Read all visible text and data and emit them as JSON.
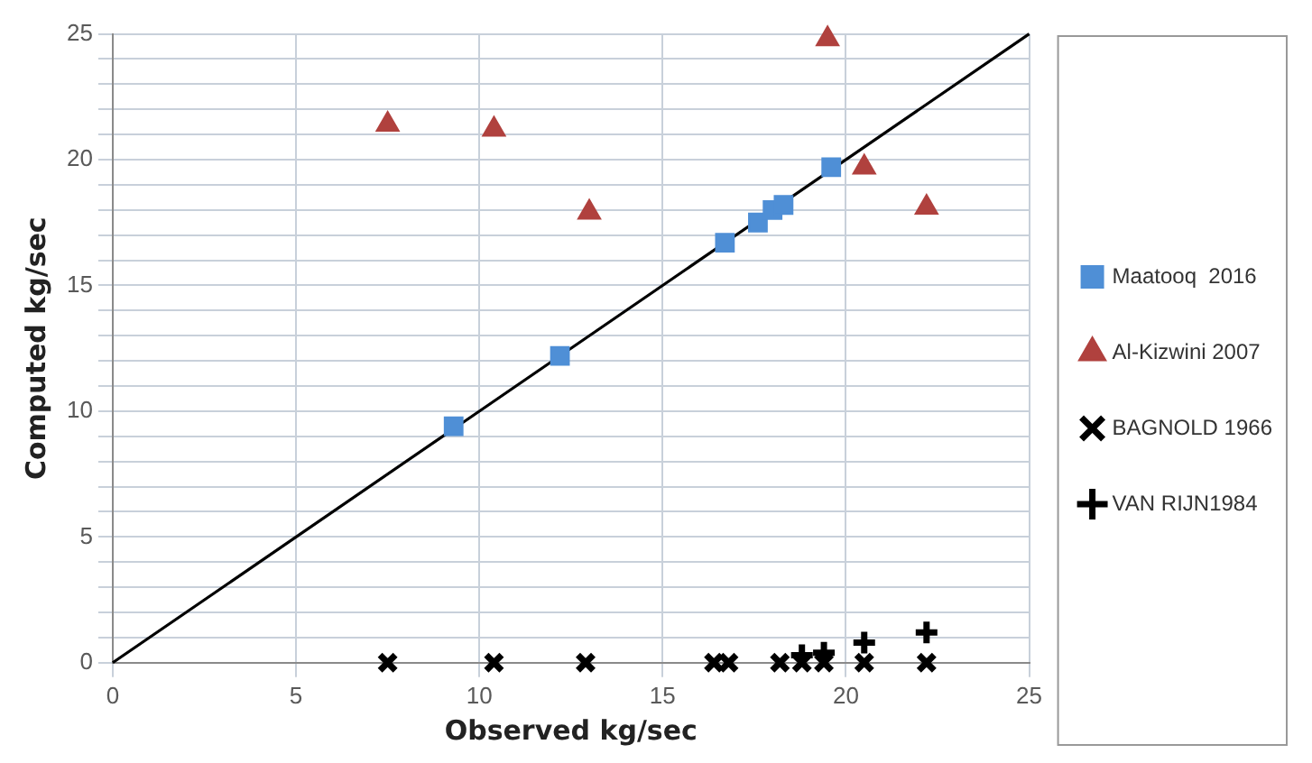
{
  "chart_data": {
    "type": "scatter",
    "xlabel": "Observed kg/sec",
    "ylabel": "Computed kg/sec",
    "xlim": [
      0,
      25
    ],
    "ylim": [
      0,
      25
    ],
    "xticks": [
      0,
      5,
      10,
      15,
      20,
      25
    ],
    "yticks": [
      0,
      {
        "value": 1,
        "label": null
      },
      {
        "value": 2,
        "label": null
      },
      {
        "value": 3,
        "label": null
      },
      {
        "value": 4,
        "label": null
      },
      5,
      {
        "value": 6,
        "label": null
      },
      {
        "value": 7,
        "label": null
      },
      {
        "value": 8,
        "label": null
      },
      {
        "value": 9,
        "label": null
      },
      10,
      {
        "value": 11,
        "label": null
      },
      {
        "value": 12,
        "label": null
      },
      {
        "value": 13,
        "label": null
      },
      {
        "value": 14,
        "label": null
      },
      15,
      {
        "value": 16,
        "label": null
      },
      {
        "value": 17,
        "label": null
      },
      {
        "value": 18,
        "label": null
      },
      {
        "value": 19,
        "label": null
      },
      20,
      {
        "value": 21,
        "label": null
      },
      {
        "value": 22,
        "label": null
      },
      {
        "value": 23,
        "label": null
      },
      {
        "value": 24,
        "label": null
      },
      25
    ],
    "grid": true,
    "legend": "right",
    "series": [
      {
        "name": "Maatooq  2016",
        "color": "#4f8fd6",
        "marker": "square",
        "x": [
          9.3,
          12.2,
          16.7,
          17.6,
          18.0,
          18.3,
          19.6
        ],
        "values": [
          9.4,
          12.2,
          16.7,
          17.5,
          18.0,
          18.2,
          19.7
        ]
      },
      {
        "name": "Al-Kizwini 2007",
        "color": "#b0413e",
        "marker": "triangle",
        "x": [
          7.5,
          10.4,
          13.0,
          19.5,
          20.5,
          22.2
        ],
        "values": [
          21.4,
          21.2,
          17.9,
          24.8,
          19.7,
          18.1
        ]
      },
      {
        "name": "BAGNOLD 1966",
        "color": "#000000",
        "marker": "cross",
        "x": [
          7.5,
          10.4,
          12.9,
          16.4,
          16.8,
          18.2,
          18.8,
          19.4,
          20.5,
          22.2
        ],
        "values": [
          0,
          0,
          0,
          0,
          0,
          0,
          0,
          0,
          0,
          0
        ]
      },
      {
        "name": "VAN RIJN1984",
        "color": "#000000",
        "marker": "plus",
        "x": [
          18.8,
          19.4,
          20.5,
          22.2
        ],
        "values": [
          0.3,
          0.4,
          0.8,
          1.2
        ]
      },
      {
        "type": "line",
        "color": "#000000",
        "marker": "none",
        "x": [
          0,
          25
        ],
        "values": [
          0,
          25
        ]
      }
    ]
  }
}
